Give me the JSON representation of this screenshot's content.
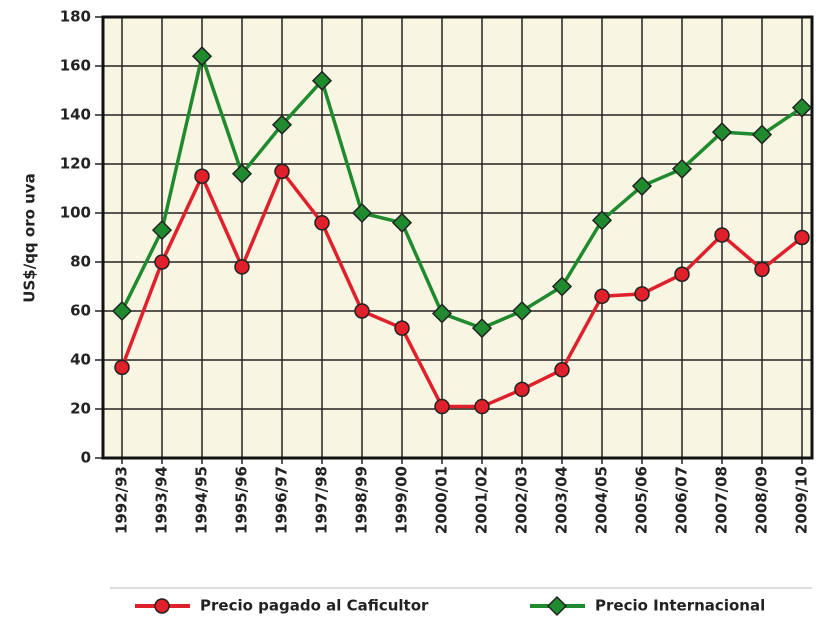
{
  "chart_data": {
    "type": "line",
    "y_label": "US$/qq oro uva",
    "categories": [
      "1992/93",
      "1993/94",
      "1994/95",
      "1995/96",
      "1996/97",
      "1997/98",
      "1998/99",
      "1999/00",
      "2000/01",
      "2001/02",
      "2002/03",
      "2003/04",
      "2004/05",
      "2005/06",
      "2006/07",
      "2007/08",
      "2008/09",
      "2009/10"
    ],
    "series": [
      {
        "name": "Precio pagado al Caficultor",
        "color": "#e0202a",
        "marker": "circle",
        "values": [
          37,
          80,
          115,
          78,
          117,
          96,
          60,
          53,
          21,
          21,
          28,
          36,
          66,
          67,
          75,
          91,
          77,
          90
        ]
      },
      {
        "name": "Precio Internacional",
        "color": "#1f8a2e",
        "marker": "diamond",
        "values": [
          60,
          93,
          164,
          116,
          136,
          154,
          100,
          96,
          59,
          53,
          60,
          70,
          97,
          111,
          118,
          133,
          132,
          143
        ]
      }
    ],
    "ylim": [
      0,
      180
    ],
    "yticks": [
      0,
      20,
      40,
      60,
      80,
      100,
      120,
      140,
      160,
      180
    ],
    "grid": true
  }
}
